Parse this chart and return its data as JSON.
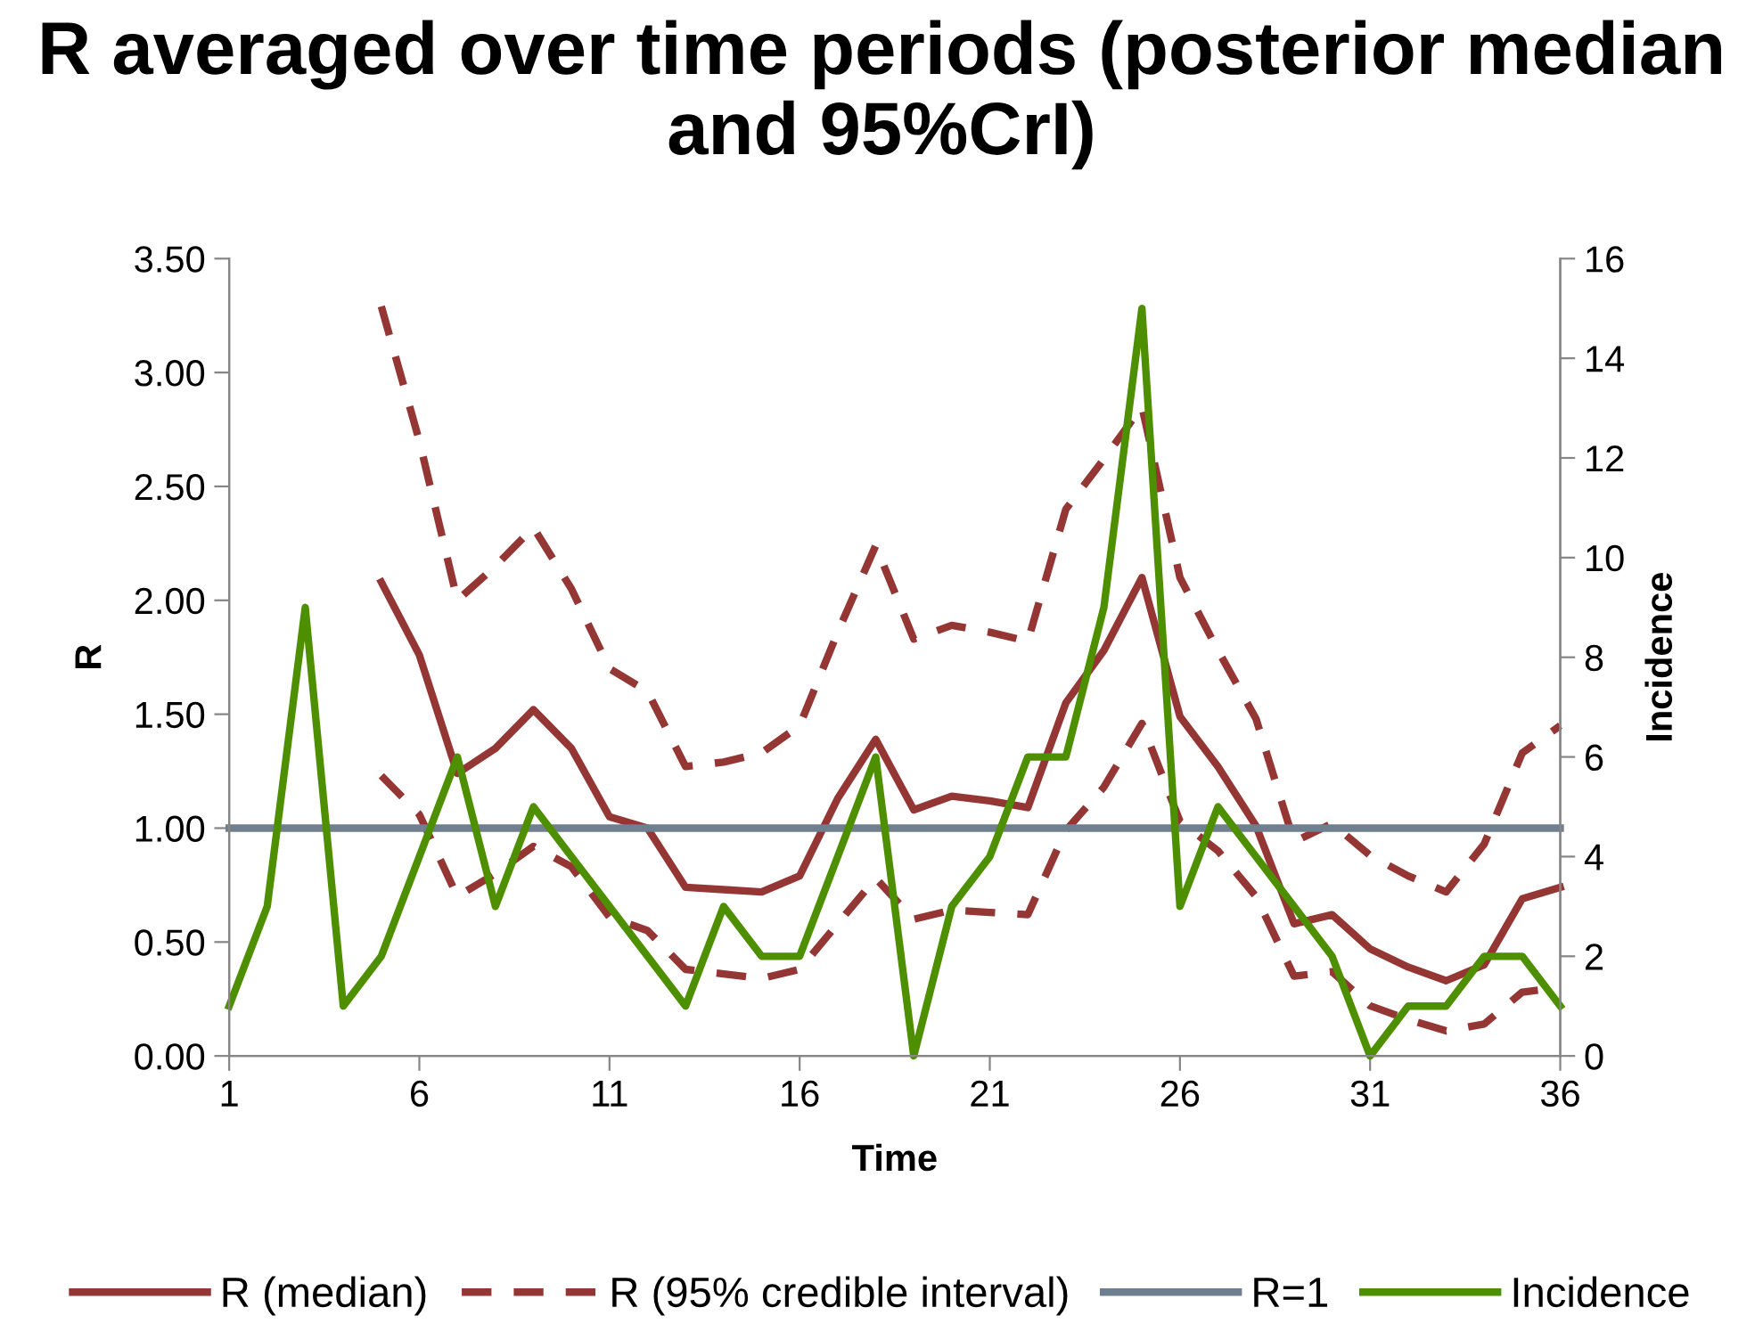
{
  "chart_data": {
    "type": "line",
    "title": "R averaged over time periods (posterior median and 95%CrI)",
    "xlabel": "Time",
    "ylabel": "R",
    "y2label": "Incidence",
    "x": [
      1,
      2,
      3,
      4,
      5,
      6,
      7,
      8,
      9,
      10,
      11,
      12,
      13,
      14,
      15,
      16,
      17,
      18,
      19,
      20,
      21,
      22,
      23,
      24,
      25,
      26,
      27,
      28,
      29,
      30,
      31,
      32,
      33,
      34,
      35,
      36
    ],
    "xlim": [
      1,
      36
    ],
    "xticks": [
      1,
      6,
      11,
      16,
      21,
      26,
      31,
      36
    ],
    "ylim": [
      0,
      3.5
    ],
    "yticks": [
      {
        "value": 0,
        "label": "0.00"
      },
      {
        "value": 0.5,
        "label": "0.50"
      },
      {
        "value": 1,
        "label": "1.00"
      },
      {
        "value": 1.5,
        "label": "1.50"
      },
      {
        "value": 2,
        "label": "2.00"
      },
      {
        "value": 2.5,
        "label": "2.50"
      },
      {
        "value": 3,
        "label": "3.00"
      },
      {
        "value": 3.5,
        "label": "3.50"
      }
    ],
    "y2lim": [
      0,
      16
    ],
    "y2ticks": [
      0,
      2,
      4,
      6,
      8,
      10,
      12,
      14,
      16
    ],
    "grid": false,
    "legend": "bottom",
    "series": [
      {
        "name": "R (median)",
        "color": "#943634",
        "line_style": "solid",
        "values": [
          null,
          null,
          null,
          null,
          2.08,
          1.76,
          1.24,
          1.35,
          1.52,
          1.35,
          1.05,
          1.0,
          0.74,
          0.73,
          0.72,
          0.79,
          1.13,
          1.39,
          1.08,
          1.14,
          1.12,
          1.09,
          1.55,
          1.78,
          2.1,
          1.49,
          1.27,
          1.01,
          0.58,
          0.62,
          0.47,
          0.39,
          0.33,
          0.4,
          0.69,
          0.74
        ]
      },
      {
        "name": "R (95% credible interval)",
        "color": "#943634",
        "line_style": "dashed",
        "values": [
          null,
          null,
          null,
          null,
          3.29,
          2.7,
          2.0,
          2.15,
          2.32,
          2.05,
          1.7,
          1.6,
          1.27,
          1.29,
          1.33,
          1.45,
          1.86,
          2.24,
          1.83,
          1.89,
          1.86,
          1.82,
          2.4,
          2.62,
          2.85,
          2.1,
          1.78,
          1.48,
          0.94,
          1.02,
          0.88,
          0.79,
          0.72,
          0.93,
          1.33,
          1.45
        ]
      },
      {
        "color": "#943634",
        "line_style": "dashed",
        "values": [
          null,
          null,
          null,
          null,
          1.23,
          1.06,
          0.7,
          0.8,
          0.92,
          0.83,
          0.61,
          0.55,
          0.38,
          0.36,
          0.34,
          0.38,
          0.58,
          0.78,
          0.6,
          0.64,
          0.63,
          0.62,
          0.99,
          1.18,
          1.46,
          1.03,
          0.9,
          0.7,
          0.35,
          0.37,
          0.22,
          0.16,
          0.11,
          0.14,
          0.28,
          0.3
        ]
      },
      {
        "name": "R=1",
        "color": "#6f7f8f",
        "line_style": "solid",
        "values": [
          1,
          1,
          1,
          1,
          1,
          1,
          1,
          1,
          1,
          1,
          1,
          1,
          1,
          1,
          1,
          1,
          1,
          1,
          1,
          1,
          1,
          1,
          1,
          1,
          1,
          1,
          1,
          1,
          1,
          1,
          1,
          1,
          1,
          1,
          1,
          1
        ]
      },
      {
        "name": "Incidence",
        "color": "#4e8f00",
        "line_style": "solid",
        "axis": "y2",
        "values": [
          1,
          3,
          9,
          1,
          2,
          4,
          6,
          3,
          5,
          4,
          3,
          2,
          1,
          3,
          2,
          2,
          4,
          6,
          0,
          3,
          4,
          6,
          6,
          9,
          15,
          3,
          5,
          4,
          3,
          2,
          0,
          1,
          1,
          2,
          2,
          1
        ]
      }
    ]
  }
}
